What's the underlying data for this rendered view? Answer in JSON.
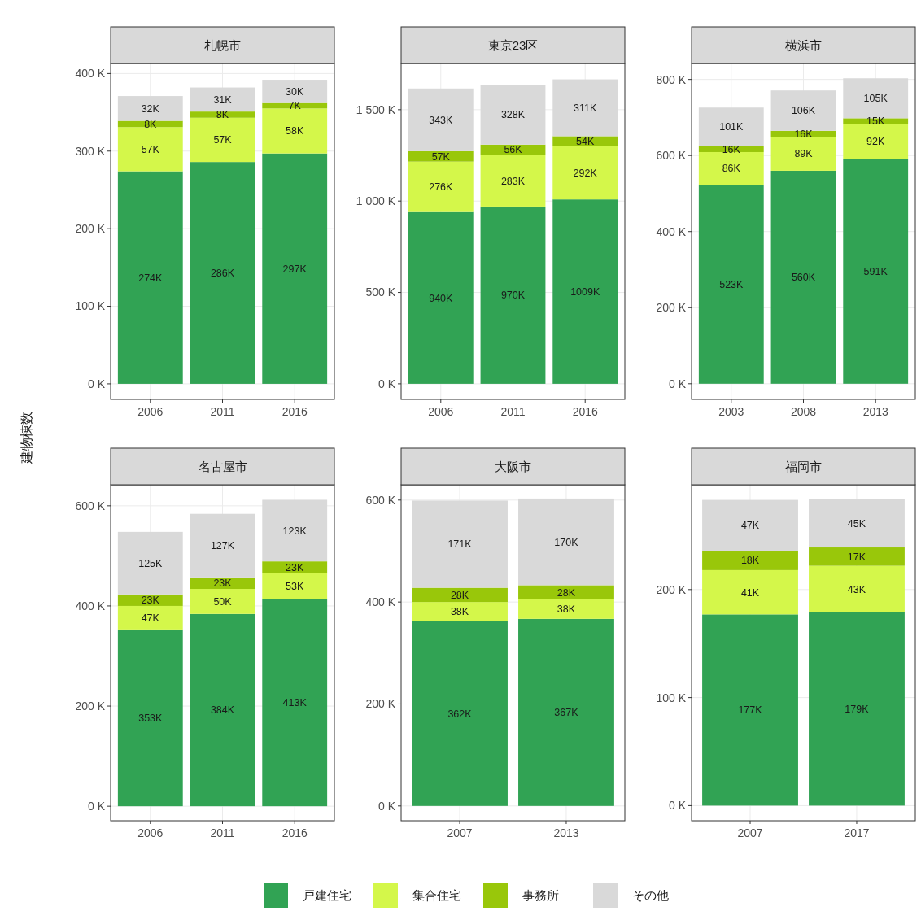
{
  "chart_data": [
    {
      "type": "bar",
      "title": "札幌市",
      "ylabel": "建物棟数",
      "stacked": true,
      "grid": true,
      "legend": "bottom",
      "categories": [
        "2006",
        "2011",
        "2016"
      ],
      "ylim": [
        -20,
        413
      ],
      "yticks": [
        {
          "value": 0,
          "label": "0 K"
        },
        {
          "value": 100,
          "label": "100 K"
        },
        {
          "value": 200,
          "label": "200 K"
        },
        {
          "value": 300,
          "label": "300 K"
        },
        {
          "value": 400,
          "label": "400 K"
        }
      ],
      "series": [
        {
          "name": "戸建住宅",
          "color": "#31a354",
          "values": [
            274,
            286,
            297
          ],
          "value_labels": [
            "274K",
            "286K",
            "297K"
          ]
        },
        {
          "name": "集合住宅",
          "color": "#d4f74a",
          "values": [
            57,
            57,
            58
          ],
          "value_labels": [
            "57K",
            "57K",
            "58K"
          ]
        },
        {
          "name": "事務所",
          "color": "#99c70a",
          "values": [
            8,
            8,
            7
          ],
          "value_labels": [
            "8K",
            "8K",
            "7K"
          ]
        },
        {
          "name": "その他",
          "color": "#d9d9d9",
          "values": [
            32,
            31,
            30
          ],
          "value_labels": [
            "32K",
            "31K",
            "30K"
          ]
        }
      ]
    },
    {
      "type": "bar",
      "title": "東京23区",
      "stacked": true,
      "grid": true,
      "categories": [
        "2006",
        "2011",
        "2016"
      ],
      "ylim": [
        -85,
        1753
      ],
      "yticks": [
        {
          "value": 0,
          "label": "0 K"
        },
        {
          "value": 500,
          "label": "500 K"
        },
        {
          "value": 1000,
          "label": "1 000 K"
        },
        {
          "value": 1500,
          "label": "1 500 K"
        }
      ],
      "series": [
        {
          "color": "#31a354",
          "values": [
            940,
            970,
            1009
          ],
          "value_labels": [
            "940K",
            "970K",
            "1009K"
          ]
        },
        {
          "color": "#d4f74a",
          "values": [
            276,
            283,
            292
          ],
          "value_labels": [
            "276K",
            "283K",
            "292K"
          ]
        },
        {
          "color": "#99c70a",
          "values": [
            57,
            56,
            54
          ],
          "value_labels": [
            "57K",
            "56K",
            "54K"
          ]
        },
        {
          "color": "#d9d9d9",
          "values": [
            343,
            328,
            311
          ],
          "value_labels": [
            "343K",
            "328K",
            "311K"
          ]
        }
      ]
    },
    {
      "type": "bar",
      "title": "横浜市",
      "stacked": true,
      "grid": true,
      "categories": [
        "2003",
        "2008",
        "2013"
      ],
      "ylim": [
        -41,
        842
      ],
      "yticks": [
        {
          "value": 0,
          "label": "0 K"
        },
        {
          "value": 200,
          "label": "200 K"
        },
        {
          "value": 400,
          "label": "400 K"
        },
        {
          "value": 600,
          "label": "600 K"
        },
        {
          "value": 800,
          "label": "800 K"
        }
      ],
      "series": [
        {
          "color": "#31a354",
          "values": [
            523,
            560,
            591
          ],
          "value_labels": [
            "523K",
            "560K",
            "591K"
          ]
        },
        {
          "color": "#d4f74a",
          "values": [
            86,
            89,
            92
          ],
          "value_labels": [
            "86K",
            "89K",
            "92K"
          ]
        },
        {
          "color": "#99c70a",
          "values": [
            16,
            16,
            15
          ],
          "value_labels": [
            "16K",
            "16K",
            "15K"
          ]
        },
        {
          "color": "#d9d9d9",
          "values": [
            101,
            106,
            105
          ],
          "value_labels": [
            "101K",
            "106K",
            "105K"
          ]
        }
      ]
    },
    {
      "type": "bar",
      "title": "名古屋市",
      "stacked": true,
      "grid": true,
      "categories": [
        "2006",
        "2011",
        "2016"
      ],
      "ylim": [
        -29,
        642
      ],
      "yticks": [
        {
          "value": 0,
          "label": "0 K"
        },
        {
          "value": 200,
          "label": "200 K"
        },
        {
          "value": 400,
          "label": "400 K"
        },
        {
          "value": 600,
          "label": "600 K"
        }
      ],
      "series": [
        {
          "color": "#31a354",
          "values": [
            353,
            384,
            413
          ],
          "value_labels": [
            "353K",
            "384K",
            "413K"
          ]
        },
        {
          "color": "#d4f74a",
          "values": [
            47,
            50,
            53
          ],
          "value_labels": [
            "47K",
            "50K",
            "53K"
          ]
        },
        {
          "color": "#99c70a",
          "values": [
            23,
            23,
            23
          ],
          "value_labels": [
            "23K",
            "23K",
            "23K"
          ]
        },
        {
          "color": "#d9d9d9",
          "values": [
            125,
            127,
            123
          ],
          "value_labels": [
            "125K",
            "127K",
            "123K"
          ]
        }
      ]
    },
    {
      "type": "bar",
      "title": "大阪市",
      "stacked": true,
      "grid": true,
      "categories": [
        "2007",
        "2013"
      ],
      "ylim": [
        -29,
        630
      ],
      "yticks": [
        {
          "value": 0,
          "label": "0 K"
        },
        {
          "value": 200,
          "label": "200 K"
        },
        {
          "value": 400,
          "label": "400 K"
        },
        {
          "value": 600,
          "label": "600 K"
        }
      ],
      "series": [
        {
          "color": "#31a354",
          "values": [
            362,
            367
          ],
          "value_labels": [
            "362K",
            "367K"
          ]
        },
        {
          "color": "#d4f74a",
          "values": [
            38,
            38
          ],
          "value_labels": [
            "38K",
            "38K"
          ]
        },
        {
          "color": "#99c70a",
          "values": [
            28,
            28
          ],
          "value_labels": [
            "28K",
            "28K"
          ]
        },
        {
          "color": "#d9d9d9",
          "values": [
            171,
            170
          ],
          "value_labels": [
            "171K",
            "170K"
          ]
        }
      ]
    },
    {
      "type": "bar",
      "title": "福岡市",
      "stacked": true,
      "grid": true,
      "categories": [
        "2007",
        "2017"
      ],
      "ylim": [
        -14,
        297
      ],
      "yticks": [
        {
          "value": 0,
          "label": "0 K"
        },
        {
          "value": 100,
          "label": "100 K"
        },
        {
          "value": 200,
          "label": "200 K"
        }
      ],
      "series": [
        {
          "color": "#31a354",
          "values": [
            177,
            179
          ],
          "value_labels": [
            "177K",
            "179K"
          ]
        },
        {
          "color": "#d4f74a",
          "values": [
            41,
            43
          ],
          "value_labels": [
            "41K",
            "43K"
          ]
        },
        {
          "color": "#99c70a",
          "values": [
            18,
            17
          ],
          "value_labels": [
            "18K",
            "17K"
          ]
        },
        {
          "color": "#d9d9d9",
          "values": [
            47,
            45
          ],
          "value_labels": [
            "47K",
            "45K"
          ]
        }
      ]
    }
  ]
}
